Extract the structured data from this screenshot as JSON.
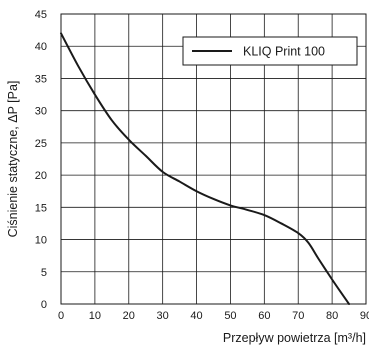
{
  "chart_data": {
    "type": "line",
    "xlabel": "Przepływ powietrza [m³/h]",
    "ylabel": "Ciśnienie statyczne, ΔP [Pa]",
    "xlim": [
      0,
      90
    ],
    "ylim": [
      0,
      45
    ],
    "xticks": [
      0,
      10,
      20,
      30,
      40,
      50,
      60,
      70,
      80,
      90
    ],
    "yticks": [
      0,
      5,
      10,
      15,
      20,
      25,
      30,
      35,
      40,
      45
    ],
    "grid": true,
    "legend_position": "top-right",
    "series": [
      {
        "name": "KLIQ Print 100",
        "color": "#1a1a1a",
        "x": [
          0,
          5,
          10,
          15,
          20,
          25,
          30,
          35,
          40,
          45,
          50,
          55,
          60,
          65,
          70,
          73,
          76,
          80,
          83,
          85
        ],
        "y": [
          42,
          37,
          32.5,
          28.5,
          25.5,
          23,
          20.5,
          19,
          17.5,
          16.3,
          15.3,
          14.6,
          13.8,
          12.5,
          11,
          9.5,
          7,
          3.8,
          1.5,
          0
        ]
      }
    ]
  }
}
